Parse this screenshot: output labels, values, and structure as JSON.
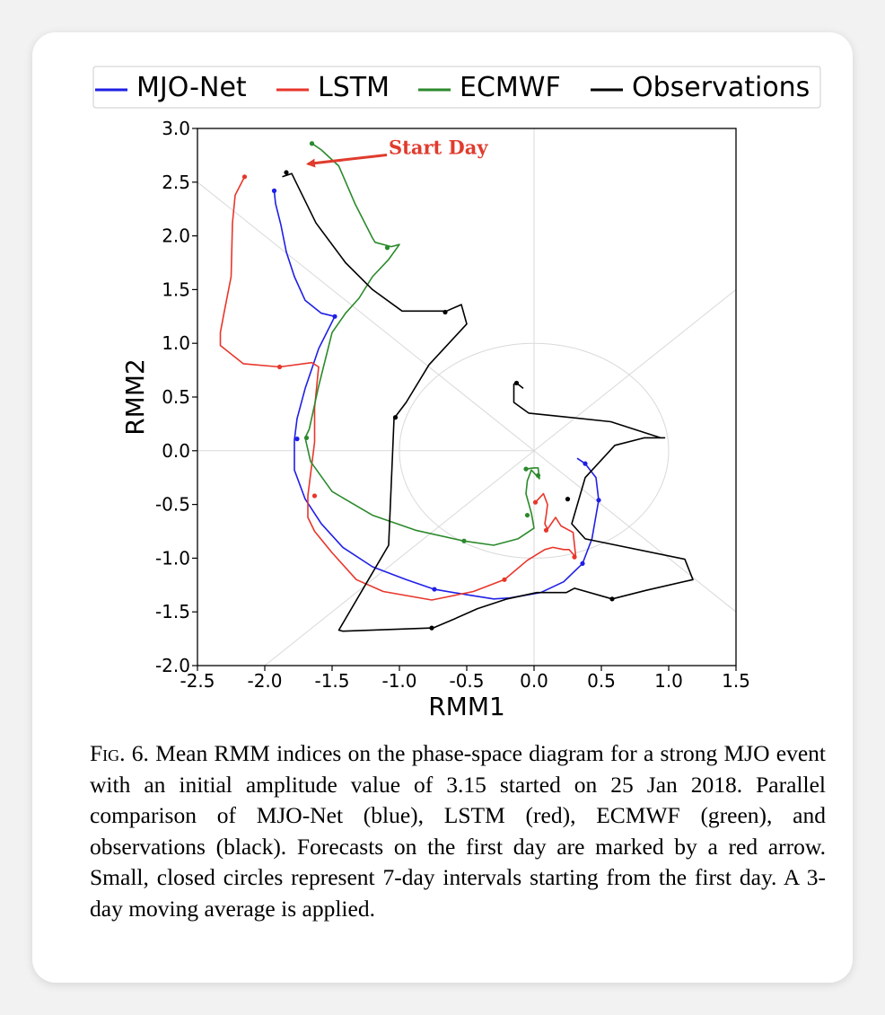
{
  "chart_data": {
    "type": "line",
    "xlabel": "RMM1",
    "ylabel": "RMM2",
    "xlim": [
      -2.5,
      1.5
    ],
    "ylim": [
      -2.0,
      3.0
    ],
    "xticks": [
      "-2.5",
      "-2.0",
      "-1.5",
      "-1.0",
      "-0.5",
      "0.0",
      "0.5",
      "1.0",
      "1.5"
    ],
    "yticks": [
      "-2.0",
      "-1.5",
      "-1.0",
      "-0.5",
      "0.0",
      "0.5",
      "1.0",
      "1.5",
      "2.0",
      "2.5",
      "3.0"
    ],
    "grid": "phase-space diagonals and unit circle",
    "legend_position": "top",
    "annotation": {
      "text": "Start Day",
      "color": "#e03b2d",
      "arrow_to": [
        -1.68,
        2.67
      ],
      "text_at": [
        -1.08,
        2.82
      ]
    },
    "series": [
      {
        "name": "MJO-Net",
        "color": "#1f1fe6",
        "x": [
          -1.93,
          -1.92,
          -1.88,
          -1.84,
          -1.78,
          -1.7,
          -1.58,
          -1.48,
          -1.6,
          -1.7,
          -1.76,
          -1.78,
          -1.78,
          -1.7,
          -1.58,
          -1.42,
          -1.2,
          -0.95,
          -0.74,
          -0.5,
          -0.3,
          -0.18,
          0.05,
          0.22,
          0.36,
          0.43,
          0.48,
          0.46,
          0.38,
          0.32
        ],
        "y": [
          2.42,
          2.3,
          2.1,
          1.85,
          1.62,
          1.4,
          1.28,
          1.25,
          0.95,
          0.58,
          0.3,
          0.1,
          -0.18,
          -0.45,
          -0.68,
          -0.9,
          -1.08,
          -1.2,
          -1.29,
          -1.34,
          -1.38,
          -1.37,
          -1.32,
          -1.22,
          -1.05,
          -0.82,
          -0.46,
          -0.25,
          -0.12,
          -0.07
        ],
        "markers": [
          [
            -1.93,
            2.42
          ],
          [
            -1.48,
            1.25
          ],
          [
            -1.76,
            0.11
          ],
          [
            -0.74,
            -1.29
          ],
          [
            0.36,
            -1.05
          ],
          [
            0.48,
            -0.46
          ],
          [
            0.38,
            -0.12
          ]
        ]
      },
      {
        "name": "LSTM",
        "color": "#e8362b",
        "x": [
          -2.15,
          -2.22,
          -2.24,
          -2.25,
          -2.3,
          -2.33,
          -2.33,
          -2.16,
          -1.89,
          -1.65,
          -1.6,
          -1.63,
          -1.63,
          -1.68,
          -1.68,
          -1.63,
          -1.5,
          -1.32,
          -1.12,
          -0.76,
          -0.45,
          -0.22,
          -0.05,
          0.08,
          0.14,
          0.22,
          0.26,
          0.31,
          0.29,
          0.2,
          0.16,
          0.1,
          0.08,
          0.09,
          0.1,
          0.07,
          0.01
        ],
        "y": [
          2.55,
          2.38,
          2.12,
          1.62,
          1.3,
          1.1,
          0.98,
          0.81,
          0.78,
          0.82,
          0.78,
          0.4,
          0.08,
          -0.42,
          -0.62,
          -0.75,
          -0.95,
          -1.2,
          -1.31,
          -1.39,
          -1.31,
          -1.2,
          -1.02,
          -0.92,
          -0.9,
          -0.92,
          -0.92,
          -0.99,
          -0.76,
          -0.7,
          -0.62,
          -0.73,
          -0.68,
          -0.6,
          -0.5,
          -0.4,
          -0.48
        ],
        "markers": [
          [
            -2.15,
            2.55
          ],
          [
            -1.89,
            0.78
          ],
          [
            -1.63,
            -0.42
          ],
          [
            -0.22,
            -1.2
          ],
          [
            0.3,
            -0.99
          ],
          [
            0.09,
            -0.74
          ],
          [
            0.01,
            -0.48
          ]
        ]
      },
      {
        "name": "ECMWF",
        "color": "#2b8a2b",
        "x": [
          -1.65,
          -1.58,
          -1.45,
          -1.33,
          -1.2,
          -1.18,
          -1.06,
          -1.0,
          -1.08,
          -1.2,
          -1.3,
          -1.4,
          -1.5,
          -1.6,
          -1.67,
          -1.7,
          -1.66,
          -1.5,
          -1.2,
          -0.88,
          -0.52,
          -0.3,
          -0.12,
          0.0,
          -0.02,
          -0.06,
          -0.05,
          -0.02,
          0.04,
          0.03,
          0.0,
          -0.06,
          -0.04
        ],
        "y": [
          2.86,
          2.8,
          2.65,
          2.3,
          1.98,
          1.94,
          1.9,
          1.92,
          1.78,
          1.62,
          1.42,
          1.28,
          1.1,
          0.6,
          0.2,
          0.12,
          -0.1,
          -0.38,
          -0.6,
          -0.74,
          -0.84,
          -0.88,
          -0.82,
          -0.72,
          -0.58,
          -0.4,
          -0.28,
          -0.18,
          -0.26,
          -0.16,
          -0.16,
          -0.17,
          -0.17
        ],
        "markers": [
          [
            -1.65,
            2.86
          ],
          [
            -1.09,
            1.89
          ],
          [
            -1.69,
            0.12
          ],
          [
            -0.52,
            -0.84
          ],
          [
            -0.05,
            -0.6
          ],
          [
            0.03,
            -0.23
          ],
          [
            -0.06,
            -0.17
          ]
        ]
      },
      {
        "name": "Observations",
        "color": "#000000",
        "x": [
          -1.87,
          -1.8,
          -1.62,
          -1.4,
          -1.2,
          -0.98,
          -0.65,
          -0.54,
          -0.5,
          -0.78,
          -0.95,
          -1.04,
          -1.05,
          -1.08,
          -1.45,
          -1.42,
          -0.75,
          -0.6,
          -0.42,
          -0.2,
          0.02,
          0.24,
          0.3,
          0.58,
          0.83,
          1.18,
          1.12,
          0.38,
          0.28,
          0.38,
          0.6,
          0.82,
          0.97,
          0.94,
          0.57,
          -0.04,
          -0.15,
          -0.15,
          -0.12,
          -0.08
        ],
        "y": [
          2.55,
          2.58,
          2.12,
          1.75,
          1.5,
          1.3,
          1.3,
          1.36,
          1.18,
          0.8,
          0.45,
          0.3,
          0.0,
          -0.88,
          -1.67,
          -1.68,
          -1.65,
          -1.57,
          -1.47,
          -1.38,
          -1.32,
          -1.32,
          -1.28,
          -1.38,
          -1.3,
          -1.2,
          -1.01,
          -0.82,
          -0.68,
          -0.25,
          0.05,
          0.12,
          0.12,
          0.12,
          0.27,
          0.35,
          0.45,
          0.62,
          0.62,
          0.58
        ],
        "markers": [
          [
            -1.84,
            2.59
          ],
          [
            -0.66,
            1.29
          ],
          [
            -1.03,
            0.31
          ],
          [
            -0.76,
            -1.65
          ],
          [
            0.58,
            -1.38
          ],
          [
            0.25,
            -0.45
          ],
          [
            -0.13,
            0.63
          ]
        ]
      }
    ]
  },
  "caption": {
    "fig_label": "Fig. 6.",
    "text": "Mean RMM indices on the phase-space diagram for a strong MJO event with an initial amplitude value of 3.15 started on 25 Jan 2018. Parallel comparison of MJO-Net (blue), LSTM (red), ECMWF (green), and observations (black). Forecasts on the first day are marked by a red arrow. Small, closed circles represent 7-day intervals starting from the first day. A 3-day moving average is applied."
  }
}
